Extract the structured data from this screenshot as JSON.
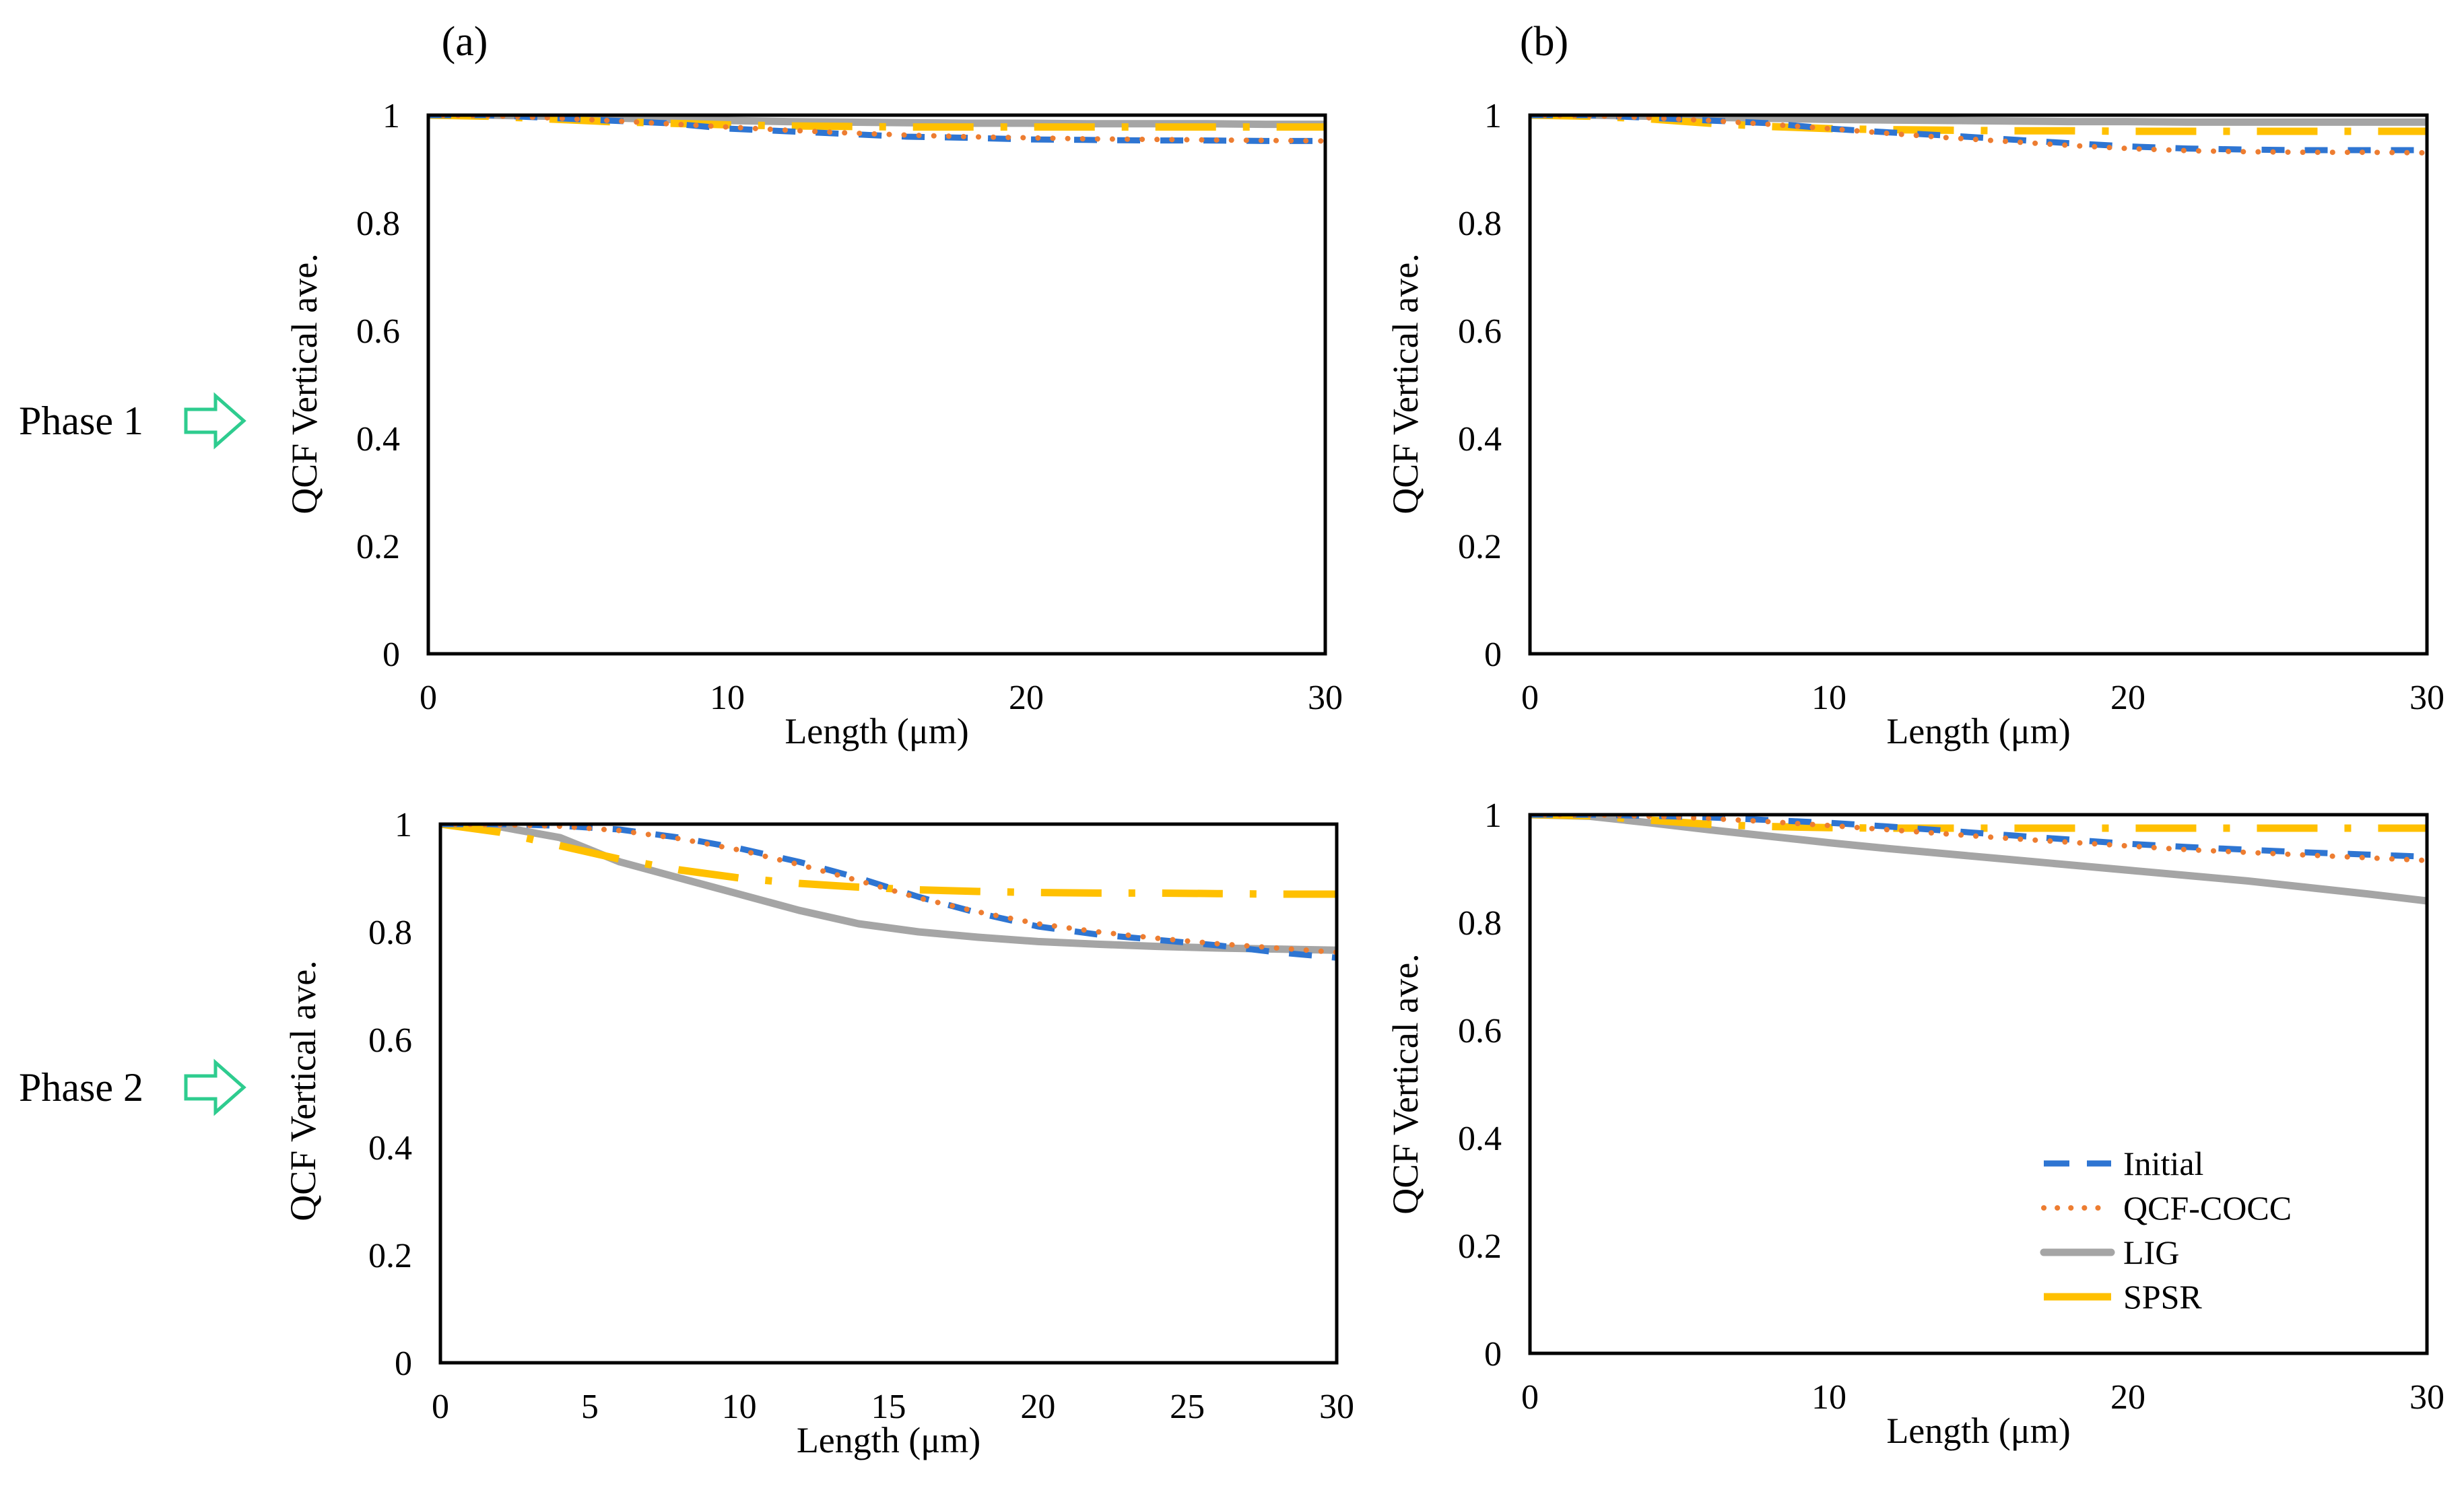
{
  "figure": {
    "panel_labels": [
      "(a)",
      "(b)"
    ],
    "row_labels": [
      "Phase 1",
      "Phase 2"
    ],
    "arrow_icon": "right-arrow-outline-icon",
    "arrow_color": "#2ecc8f"
  },
  "legend": {
    "items": [
      {
        "name": "Initial",
        "color": "#2e75d2",
        "style": "dashed"
      },
      {
        "name": "QCF-COCC",
        "color": "#ed7d31",
        "style": "dotted"
      },
      {
        "name": "LIG",
        "color": "#a5a5a5",
        "style": "solid"
      },
      {
        "name": "SPSR",
        "color": "#ffc000",
        "style": "long-dash-dot"
      }
    ]
  },
  "chart_data": [
    {
      "type": "line",
      "panel": "(a)",
      "row": "Phase 1",
      "xlabel": "Length (μm)",
      "ylabel": "QCF  Vertical  ave.",
      "xlim": [
        0,
        30
      ],
      "ylim": [
        0,
        1
      ],
      "xticks": [
        0,
        10,
        20,
        30
      ],
      "xtick_labels": [
        "0",
        "10",
        "20",
        "30"
      ],
      "yticks": [
        0,
        0.2,
        0.4,
        0.6,
        0.8,
        1
      ],
      "ytick_labels": [
        "0",
        "0.2",
        "0.4",
        "0.6",
        "0.8",
        "1"
      ],
      "grid": false,
      "x": [
        0,
        2,
        4,
        6,
        8,
        10,
        12,
        14,
        16,
        18,
        20,
        22,
        24,
        26,
        28,
        30
      ],
      "series": [
        {
          "name": "Initial",
          "values": [
            1,
            1,
            0.995,
            0.99,
            0.985,
            0.975,
            0.97,
            0.965,
            0.96,
            0.958,
            0.955,
            0.954,
            0.953,
            0.953,
            0.952,
            0.952
          ]
        },
        {
          "name": "QCF-COCC",
          "values": [
            1,
            0.999,
            0.995,
            0.99,
            0.984,
            0.978,
            0.972,
            0.967,
            0.963,
            0.96,
            0.958,
            0.956,
            0.955,
            0.954,
            0.953,
            0.952
          ]
        },
        {
          "name": "LIG",
          "values": [
            1,
            1,
            0.998,
            0.995,
            0.992,
            0.99,
            0.988,
            0.987,
            0.986,
            0.985,
            0.985,
            0.984,
            0.984,
            0.984,
            0.983,
            0.983
          ]
        },
        {
          "name": "SPSR",
          "values": [
            1,
            0.998,
            0.993,
            0.988,
            0.985,
            0.982,
            0.98,
            0.979,
            0.978,
            0.978,
            0.978,
            0.978,
            0.978,
            0.978,
            0.978,
            0.978
          ]
        }
      ]
    },
    {
      "type": "line",
      "panel": "(b)",
      "row": "Phase 1",
      "xlabel": "Length (μm)",
      "ylabel": "QCF  Vertical  ave.",
      "xlim": [
        0,
        30
      ],
      "ylim": [
        0,
        1
      ],
      "xticks": [
        0,
        10,
        20,
        30
      ],
      "xtick_labels": [
        "0",
        "10",
        "20",
        "30"
      ],
      "yticks": [
        0,
        0.2,
        0.4,
        0.6,
        0.8,
        1
      ],
      "ytick_labels": [
        "0",
        "0.2",
        "0.4",
        "0.6",
        "0.8",
        "1"
      ],
      "grid": false,
      "x": [
        0,
        2,
        4,
        6,
        8,
        10,
        12,
        14,
        16,
        18,
        20,
        22,
        24,
        26,
        28,
        30
      ],
      "series": [
        {
          "name": "Initial",
          "values": [
            1,
            1,
            0.995,
            0.99,
            0.985,
            0.975,
            0.968,
            0.962,
            0.955,
            0.948,
            0.942,
            0.938,
            0.936,
            0.935,
            0.935,
            0.935
          ]
        },
        {
          "name": "QCF-COCC",
          "values": [
            1,
            0.999,
            0.995,
            0.99,
            0.983,
            0.975,
            0.966,
            0.958,
            0.951,
            0.944,
            0.938,
            0.934,
            0.932,
            0.931,
            0.931,
            0.93
          ]
        },
        {
          "name": "LIG",
          "values": [
            1,
            1,
            0.998,
            0.996,
            0.994,
            0.992,
            0.991,
            0.99,
            0.989,
            0.988,
            0.988,
            0.987,
            0.987,
            0.987,
            0.987,
            0.987
          ]
        },
        {
          "name": "SPSR",
          "values": [
            1,
            0.998,
            0.993,
            0.985,
            0.979,
            0.975,
            0.973,
            0.972,
            0.971,
            0.971,
            0.97,
            0.97,
            0.97,
            0.97,
            0.97,
            0.97
          ]
        }
      ]
    },
    {
      "type": "line",
      "panel": "(a)",
      "row": "Phase 2",
      "xlabel": "Length (μm)",
      "ylabel": "QCF  Vertical  ave.",
      "xlim": [
        0,
        30
      ],
      "ylim": [
        0,
        1
      ],
      "xticks": [
        0,
        5,
        10,
        15,
        20,
        25,
        30
      ],
      "xtick_labels": [
        "0",
        "5",
        "10",
        "15",
        "20",
        "25",
        "30"
      ],
      "yticks": [
        0,
        0.2,
        0.4,
        0.6,
        0.8,
        1
      ],
      "ytick_labels": [
        "0",
        "0.2",
        "0.4",
        "0.6",
        "0.8",
        "1"
      ],
      "grid": false,
      "x": [
        0,
        2,
        4,
        6,
        8,
        10,
        12,
        14,
        16,
        18,
        20,
        22,
        24,
        26,
        28,
        30
      ],
      "series": [
        {
          "name": "Initial",
          "values": [
            1,
            1,
            0.997,
            0.99,
            0.975,
            0.955,
            0.93,
            0.9,
            0.865,
            0.835,
            0.81,
            0.795,
            0.785,
            0.775,
            0.762,
            0.752
          ]
        },
        {
          "name": "QCF-COCC",
          "values": [
            1,
            0.999,
            0.996,
            0.988,
            0.973,
            0.952,
            0.925,
            0.895,
            0.863,
            0.837,
            0.815,
            0.8,
            0.788,
            0.778,
            0.77,
            0.762
          ]
        },
        {
          "name": "LIG",
          "values": [
            1,
            0.995,
            0.975,
            0.93,
            0.9,
            0.87,
            0.84,
            0.815,
            0.8,
            0.79,
            0.782,
            0.777,
            0.773,
            0.77,
            0.768,
            0.766
          ]
        },
        {
          "name": "SPSR",
          "values": [
            1,
            0.985,
            0.96,
            0.935,
            0.915,
            0.9,
            0.89,
            0.883,
            0.878,
            0.875,
            0.873,
            0.872,
            0.872,
            0.871,
            0.87,
            0.87
          ]
        }
      ]
    },
    {
      "type": "line",
      "panel": "(b)",
      "row": "Phase 2",
      "xlabel": "Length (μm)",
      "ylabel": "QCF  Vertical  ave.",
      "xlim": [
        0,
        30
      ],
      "ylim": [
        0,
        1
      ],
      "xticks": [
        0,
        10,
        20,
        30
      ],
      "xtick_labels": [
        "0",
        "10",
        "20",
        "30"
      ],
      "yticks": [
        0,
        0.2,
        0.4,
        0.6,
        0.8,
        1
      ],
      "ytick_labels": [
        "0",
        "0.2",
        "0.4",
        "0.6",
        "0.8",
        "1"
      ],
      "grid": false,
      "legend": "bottom-right",
      "x": [
        0,
        2,
        4,
        6,
        8,
        10,
        12,
        14,
        16,
        18,
        20,
        22,
        24,
        26,
        28,
        30
      ],
      "series": [
        {
          "name": "Initial",
          "values": [
            1,
            1,
            0.998,
            0.995,
            0.99,
            0.985,
            0.978,
            0.97,
            0.962,
            0.954,
            0.946,
            0.94,
            0.935,
            0.93,
            0.926,
            0.922
          ]
        },
        {
          "name": "QCF-COCC",
          "values": [
            1,
            1,
            0.997,
            0.993,
            0.987,
            0.98,
            0.972,
            0.964,
            0.956,
            0.949,
            0.942,
            0.935,
            0.93,
            0.925,
            0.92,
            0.915
          ]
        },
        {
          "name": "LIG",
          "values": [
            1,
            0.997,
            0.985,
            0.972,
            0.96,
            0.948,
            0.937,
            0.927,
            0.917,
            0.907,
            0.897,
            0.887,
            0.877,
            0.865,
            0.853,
            0.84
          ]
        },
        {
          "name": "SPSR",
          "values": [
            1,
            0.998,
            0.99,
            0.982,
            0.978,
            0.976,
            0.975,
            0.975,
            0.975,
            0.975,
            0.975,
            0.975,
            0.975,
            0.975,
            0.975,
            0.975
          ]
        }
      ]
    }
  ]
}
